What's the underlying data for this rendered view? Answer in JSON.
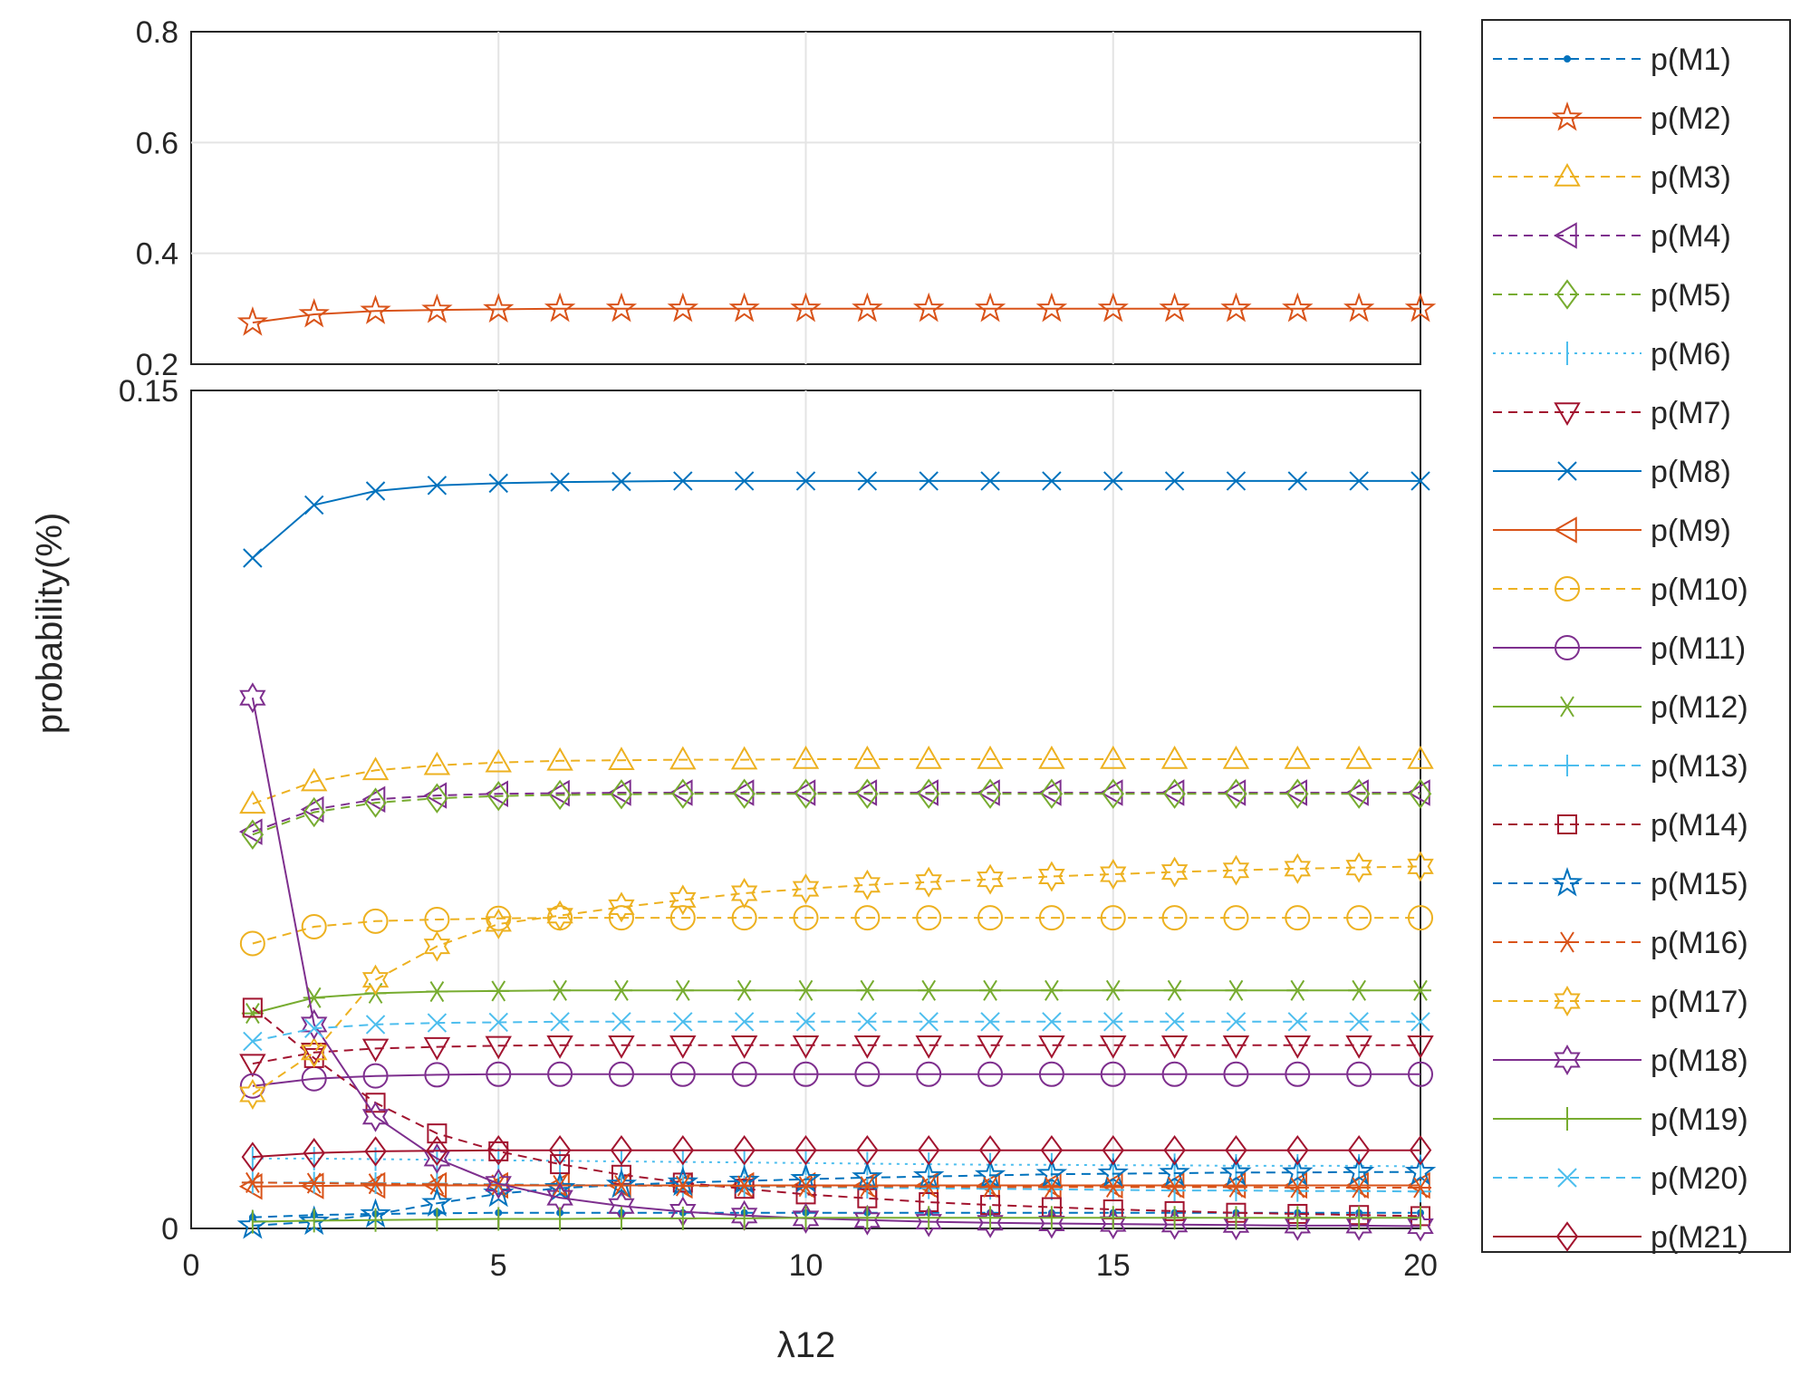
{
  "chart_data": {
    "type": "line",
    "xlabel": "λ12",
    "ylabel": "probability(%)",
    "x": [
      1,
      2,
      3,
      4,
      5,
      6,
      7,
      8,
      9,
      10,
      11,
      12,
      13,
      14,
      15,
      16,
      17,
      18,
      19,
      20
    ],
    "xlim": [
      0,
      20
    ],
    "xticks": [
      0,
      5,
      10,
      15,
      20
    ],
    "xtick_labels": [
      "0",
      "5",
      "10",
      "15",
      "20"
    ],
    "y_axis_break": {
      "lower_range": [
        0,
        0.15
      ],
      "upper_range": [
        0.2,
        0.8
      ]
    },
    "yticks_lower": [
      0,
      0.15
    ],
    "ytick_labels_lower": [
      "0",
      "0.15"
    ],
    "yticks_upper": [
      0.2,
      0.4,
      0.6,
      0.8
    ],
    "ytick_labels_upper": [
      "0.2",
      "0.4",
      "0.6",
      "0.8"
    ],
    "grid": true,
    "legend_position": "outside-right",
    "series": [
      {
        "name": "p(M1)",
        "color": "#0072BD",
        "line": "dashed",
        "marker": "point",
        "values": [
          0.002,
          0.0024,
          0.0026,
          0.0027,
          0.0028,
          0.0028,
          0.0028,
          0.0028,
          0.0028,
          0.0028,
          0.0028,
          0.0028,
          0.0028,
          0.0028,
          0.0028,
          0.0028,
          0.0028,
          0.0028,
          0.0028,
          0.0028
        ]
      },
      {
        "name": "p(M2)",
        "color": "#D95319",
        "line": "solid",
        "marker": "pentagram",
        "values": [
          0.275,
          0.29,
          0.296,
          0.298,
          0.299,
          0.3,
          0.3,
          0.3,
          0.3,
          0.3,
          0.3,
          0.3,
          0.3,
          0.3,
          0.3,
          0.3,
          0.3,
          0.3,
          0.3,
          0.3
        ]
      },
      {
        "name": "p(M3)",
        "color": "#EDB120",
        "line": "dashed",
        "marker": "triangle-up",
        "values": [
          0.076,
          0.08,
          0.082,
          0.0829,
          0.0834,
          0.0837,
          0.0838,
          0.0839,
          0.0839,
          0.084,
          0.084,
          0.084,
          0.084,
          0.084,
          0.084,
          0.084,
          0.084,
          0.084,
          0.084,
          0.084
        ]
      },
      {
        "name": "p(M4)",
        "color": "#7E2F8E",
        "line": "dashed",
        "marker": "triangle-left",
        "values": [
          0.071,
          0.075,
          0.0768,
          0.0775,
          0.0778,
          0.0779,
          0.078,
          0.078,
          0.078,
          0.078,
          0.078,
          0.078,
          0.078,
          0.078,
          0.078,
          0.078,
          0.078,
          0.078,
          0.078,
          0.078
        ]
      },
      {
        "name": "p(M5)",
        "color": "#77AC30",
        "line": "dashed",
        "marker": "diamond",
        "values": [
          0.0705,
          0.0745,
          0.0762,
          0.077,
          0.0774,
          0.0776,
          0.0777,
          0.0778,
          0.0778,
          0.0778,
          0.0778,
          0.0778,
          0.0778,
          0.0778,
          0.0778,
          0.0778,
          0.0778,
          0.0778,
          0.0778,
          0.0778
        ]
      },
      {
        "name": "p(M6)",
        "color": "#4DBEEE",
        "line": "dotted",
        "marker": "vbar",
        "values": [
          0.0125,
          0.0125,
          0.0124,
          0.0123,
          0.0122,
          0.0121,
          0.012,
          0.0119,
          0.0118,
          0.0117,
          0.0116,
          0.0115,
          0.0114,
          0.0114,
          0.0113,
          0.0113,
          0.0112,
          0.0112,
          0.0112,
          0.0111
        ]
      },
      {
        "name": "p(M7)",
        "color": "#A2142F",
        "line": "dashed",
        "marker": "triangle-down",
        "values": [
          0.0295,
          0.0315,
          0.0322,
          0.0325,
          0.0327,
          0.0328,
          0.0328,
          0.0328,
          0.0328,
          0.0328,
          0.0328,
          0.0328,
          0.0328,
          0.0328,
          0.0328,
          0.0328,
          0.0328,
          0.0328,
          0.0328,
          0.0328
        ]
      },
      {
        "name": "p(M8)",
        "color": "#0072BD",
        "line": "solid",
        "marker": "x",
        "values": [
          0.12,
          0.1295,
          0.132,
          0.133,
          0.1334,
          0.1336,
          0.1337,
          0.1338,
          0.1338,
          0.1338,
          0.1338,
          0.1338,
          0.1338,
          0.1338,
          0.1338,
          0.1338,
          0.1338,
          0.1338,
          0.1338,
          0.1338
        ]
      },
      {
        "name": "p(M9)",
        "color": "#D95319",
        "line": "solid",
        "marker": "triangle-left",
        "values": [
          0.0075,
          0.0076,
          0.0077,
          0.0077,
          0.0077,
          0.0077,
          0.0077,
          0.0077,
          0.0077,
          0.0077,
          0.0077,
          0.0077,
          0.0077,
          0.0077,
          0.0077,
          0.0077,
          0.0077,
          0.0077,
          0.0077,
          0.0077
        ]
      },
      {
        "name": "p(M10)",
        "color": "#EDB120",
        "line": "dashed",
        "marker": "circle",
        "values": [
          0.051,
          0.054,
          0.055,
          0.0553,
          0.0555,
          0.0556,
          0.0556,
          0.0556,
          0.0556,
          0.0556,
          0.0556,
          0.0556,
          0.0556,
          0.0556,
          0.0556,
          0.0556,
          0.0556,
          0.0556,
          0.0556,
          0.0556
        ]
      },
      {
        "name": "p(M11)",
        "color": "#7E2F8E",
        "line": "solid",
        "marker": "circle",
        "values": [
          0.0255,
          0.0268,
          0.0273,
          0.0275,
          0.0276,
          0.0276,
          0.0276,
          0.0276,
          0.0276,
          0.0276,
          0.0276,
          0.0276,
          0.0276,
          0.0276,
          0.0276,
          0.0276,
          0.0276,
          0.0276,
          0.0276,
          0.0276
        ]
      },
      {
        "name": "p(M12)",
        "color": "#77AC30",
        "line": "solid",
        "marker": "asterisk",
        "values": [
          0.0385,
          0.0413,
          0.0421,
          0.0424,
          0.0425,
          0.0426,
          0.0426,
          0.0426,
          0.0426,
          0.0426,
          0.0426,
          0.0426,
          0.0426,
          0.0426,
          0.0426,
          0.0426,
          0.0426,
          0.0426,
          0.0426,
          0.0426
        ]
      },
      {
        "name": "p(M13)",
        "color": "#4DBEEE",
        "line": "dashed",
        "marker": "plus",
        "values": [
          0.0082,
          0.0082,
          0.0081,
          0.008,
          0.0079,
          0.0078,
          0.0077,
          0.0076,
          0.0075,
          0.0074,
          0.0073,
          0.0072,
          0.0071,
          0.007,
          0.0069,
          0.0068,
          0.0068,
          0.0067,
          0.0067,
          0.0066
        ]
      },
      {
        "name": "p(M14)",
        "color": "#A2142F",
        "line": "dashed",
        "marker": "square",
        "values": [
          0.0395,
          0.0305,
          0.0225,
          0.017,
          0.0138,
          0.0115,
          0.0096,
          0.0082,
          0.0071,
          0.0061,
          0.0054,
          0.0047,
          0.0042,
          0.0038,
          0.0034,
          0.0031,
          0.0028,
          0.0026,
          0.0024,
          0.0022
        ]
      },
      {
        "name": "p(M15)",
        "color": "#0072BD",
        "line": "dashed",
        "marker": "pentagram",
        "values": [
          0.0005,
          0.0012,
          0.0025,
          0.0045,
          0.0062,
          0.0072,
          0.0078,
          0.0082,
          0.0085,
          0.0088,
          0.0091,
          0.0093,
          0.0095,
          0.0097,
          0.0098,
          0.0099,
          0.01,
          0.01,
          0.0101,
          0.0101
        ]
      },
      {
        "name": "p(M16)",
        "color": "#D95319",
        "line": "dashed",
        "marker": "asterisk",
        "values": [
          0.0082,
          0.0081,
          0.008,
          0.0079,
          0.0078,
          0.0077,
          0.0077,
          0.0076,
          0.0076,
          0.0075,
          0.0075,
          0.0075,
          0.0074,
          0.0074,
          0.0074,
          0.0074,
          0.0074,
          0.0073,
          0.0073,
          0.0073
        ]
      },
      {
        "name": "p(M17)",
        "color": "#EDB120",
        "line": "dashed",
        "marker": "hexagram",
        "values": [
          0.024,
          0.0315,
          0.0445,
          0.0505,
          0.0545,
          0.056,
          0.0575,
          0.0588,
          0.06,
          0.0608,
          0.0615,
          0.062,
          0.0625,
          0.063,
          0.0634,
          0.0638,
          0.0641,
          0.0644,
          0.0646,
          0.0648
        ]
      },
      {
        "name": "p(M18)",
        "color": "#7E2F8E",
        "line": "solid",
        "marker": "hexagram",
        "values": [
          0.095,
          0.0365,
          0.02,
          0.0125,
          0.008,
          0.0055,
          0.004,
          0.003,
          0.0023,
          0.0018,
          0.0015,
          0.0012,
          0.001,
          0.0009,
          0.0008,
          0.0007,
          0.0006,
          0.0005,
          0.0005,
          0.0004
        ]
      },
      {
        "name": "p(M19)",
        "color": "#77AC30",
        "line": "solid",
        "marker": "vbar",
        "values": [
          0.0012,
          0.0014,
          0.0015,
          0.0016,
          0.0017,
          0.0017,
          0.0018,
          0.0018,
          0.0018,
          0.0019,
          0.0019,
          0.0019,
          0.0019,
          0.0019,
          0.0019,
          0.0019,
          0.0019,
          0.0019,
          0.0019,
          0.0019
        ]
      },
      {
        "name": "p(M20)",
        "color": "#4DBEEE",
        "line": "dashed",
        "marker": "x",
        "values": [
          0.0335,
          0.0358,
          0.0365,
          0.0368,
          0.0369,
          0.037,
          0.037,
          0.037,
          0.037,
          0.037,
          0.037,
          0.037,
          0.037,
          0.037,
          0.037,
          0.037,
          0.037,
          0.037,
          0.037,
          0.037
        ]
      },
      {
        "name": "p(M21)",
        "color": "#A2142F",
        "line": "solid",
        "marker": "diamond",
        "values": [
          0.0128,
          0.0135,
          0.0138,
          0.0139,
          0.014,
          0.014,
          0.014,
          0.014,
          0.014,
          0.014,
          0.014,
          0.014,
          0.014,
          0.014,
          0.014,
          0.014,
          0.014,
          0.014,
          0.014,
          0.014
        ]
      }
    ]
  }
}
